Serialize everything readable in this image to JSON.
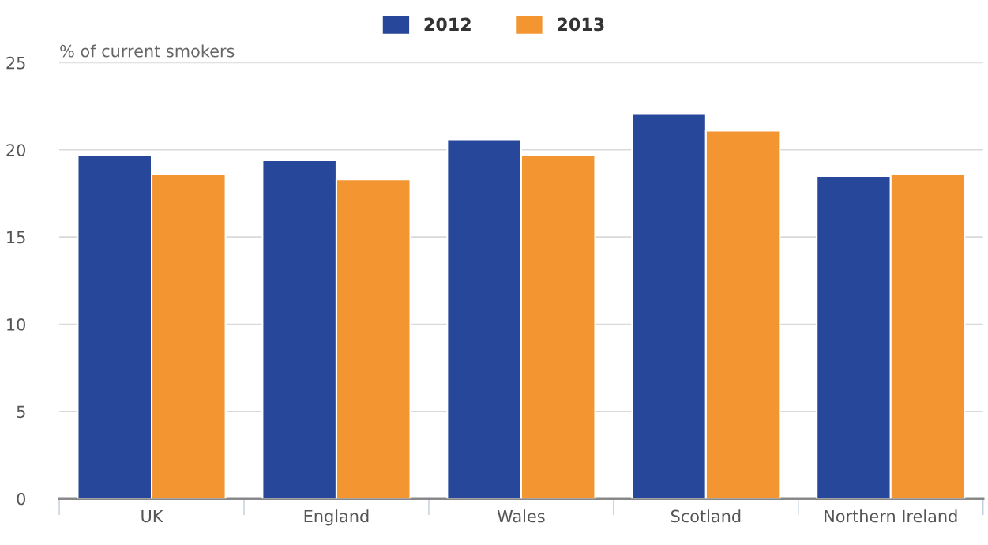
{
  "chart_data": {
    "type": "bar",
    "ylabel": "% of current smokers",
    "categories": [
      "UK",
      "England",
      "Wales",
      "Scotland",
      "Northern Ireland"
    ],
    "series": [
      {
        "name": "2012",
        "color": "#27479a",
        "values": [
          19.7,
          19.4,
          20.6,
          22.1,
          18.5
        ]
      },
      {
        "name": "2013",
        "color": "#f39530",
        "values": [
          18.6,
          18.3,
          19.7,
          21.1,
          18.6
        ]
      }
    ],
    "ylim": [
      0,
      25
    ],
    "yticks": [
      0,
      5,
      10,
      15,
      20,
      25
    ],
    "grid": "y",
    "legend": "top"
  }
}
